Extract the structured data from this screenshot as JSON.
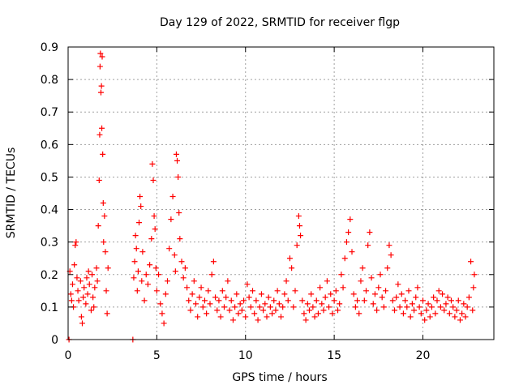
{
  "chart_data": {
    "type": "scatter",
    "title": "Day 129 of 2022, SRMTID for receiver flgp",
    "xlabel": "GPS time / hours",
    "ylabel": "SRMTID / TECUs",
    "xlim": [
      0,
      24
    ],
    "ylim": [
      0,
      0.9
    ],
    "x_ticks": [
      0,
      5,
      10,
      15,
      20
    ],
    "x_tick_labels": [
      "0",
      "5",
      "10",
      "15",
      "20"
    ],
    "y_ticks": [
      0,
      0.1,
      0.2,
      0.3,
      0.4,
      0.5,
      0.6,
      0.7,
      0.8,
      0.9
    ],
    "y_tick_labels": [
      "0",
      "0.1",
      "0.2",
      "0.3",
      "0.4",
      "0.5",
      "0.6",
      "0.7",
      "0.8",
      "0.9"
    ],
    "grid": true,
    "marker": "+",
    "color": "#ff0000",
    "series": [
      {
        "name": "SRMTID",
        "points": [
          [
            0.05,
            0.0
          ],
          [
            0.1,
            0.21
          ],
          [
            0.15,
            0.14
          ],
          [
            0.2,
            0.12
          ],
          [
            0.25,
            0.17
          ],
          [
            0.3,
            0.1
          ],
          [
            0.35,
            0.23
          ],
          [
            0.4,
            0.29
          ],
          [
            0.45,
            0.3
          ],
          [
            0.5,
            0.19
          ],
          [
            0.55,
            0.15
          ],
          [
            0.6,
            0.12
          ],
          [
            0.7,
            0.18
          ],
          [
            0.75,
            0.07
          ],
          [
            0.8,
            0.05
          ],
          [
            0.85,
            0.13
          ],
          [
            0.9,
            0.16
          ],
          [
            1.0,
            0.11
          ],
          [
            1.05,
            0.19
          ],
          [
            1.1,
            0.14
          ],
          [
            1.15,
            0.21
          ],
          [
            1.2,
            0.17
          ],
          [
            1.3,
            0.09
          ],
          [
            1.35,
            0.2
          ],
          [
            1.4,
            0.13
          ],
          [
            1.45,
            0.1
          ],
          [
            1.5,
            0.16
          ],
          [
            1.6,
            0.22
          ],
          [
            1.65,
            0.18
          ],
          [
            1.7,
            0.35
          ],
          [
            1.75,
            0.49
          ],
          [
            1.78,
            0.63
          ],
          [
            1.8,
            0.84
          ],
          [
            1.82,
            0.88
          ],
          [
            1.85,
            0.76
          ],
          [
            1.88,
            0.78
          ],
          [
            1.9,
            0.65
          ],
          [
            1.92,
            0.87
          ],
          [
            1.95,
            0.57
          ],
          [
            1.98,
            0.42
          ],
          [
            2.0,
            0.3
          ],
          [
            2.05,
            0.38
          ],
          [
            2.1,
            0.27
          ],
          [
            2.15,
            0.15
          ],
          [
            2.2,
            0.08
          ],
          [
            2.25,
            0.22
          ],
          [
            3.65,
            0.0
          ],
          [
            3.7,
            0.19
          ],
          [
            3.75,
            0.24
          ],
          [
            3.8,
            0.32
          ],
          [
            3.85,
            0.28
          ],
          [
            3.9,
            0.15
          ],
          [
            3.95,
            0.21
          ],
          [
            4.0,
            0.36
          ],
          [
            4.05,
            0.44
          ],
          [
            4.1,
            0.41
          ],
          [
            4.15,
            0.18
          ],
          [
            4.2,
            0.27
          ],
          [
            4.3,
            0.12
          ],
          [
            4.4,
            0.2
          ],
          [
            4.5,
            0.17
          ],
          [
            4.6,
            0.23
          ],
          [
            4.7,
            0.31
          ],
          [
            4.75,
            0.54
          ],
          [
            4.8,
            0.49
          ],
          [
            4.85,
            0.38
          ],
          [
            4.9,
            0.34
          ],
          [
            4.95,
            0.22
          ],
          [
            5.0,
            0.15
          ],
          [
            5.1,
            0.2
          ],
          [
            5.2,
            0.11
          ],
          [
            5.3,
            0.08
          ],
          [
            5.4,
            0.05
          ],
          [
            5.5,
            0.14
          ],
          [
            5.6,
            0.18
          ],
          [
            5.7,
            0.28
          ],
          [
            5.8,
            0.37
          ],
          [
            5.9,
            0.44
          ],
          [
            6.0,
            0.26
          ],
          [
            6.05,
            0.21
          ],
          [
            6.1,
            0.57
          ],
          [
            6.15,
            0.55
          ],
          [
            6.2,
            0.5
          ],
          [
            6.25,
            0.39
          ],
          [
            6.3,
            0.31
          ],
          [
            6.4,
            0.24
          ],
          [
            6.5,
            0.19
          ],
          [
            6.6,
            0.22
          ],
          [
            6.7,
            0.16
          ],
          [
            6.8,
            0.12
          ],
          [
            6.9,
            0.09
          ],
          [
            7.0,
            0.14
          ],
          [
            7.1,
            0.18
          ],
          [
            7.2,
            0.11
          ],
          [
            7.3,
            0.07
          ],
          [
            7.4,
            0.13
          ],
          [
            7.5,
            0.16
          ],
          [
            7.6,
            0.1
          ],
          [
            7.7,
            0.12
          ],
          [
            7.8,
            0.08
          ],
          [
            7.9,
            0.15
          ],
          [
            8.0,
            0.11
          ],
          [
            8.1,
            0.2
          ],
          [
            8.2,
            0.24
          ],
          [
            8.3,
            0.13
          ],
          [
            8.4,
            0.09
          ],
          [
            8.5,
            0.12
          ],
          [
            8.6,
            0.07
          ],
          [
            8.7,
            0.15
          ],
          [
            8.8,
            0.1
          ],
          [
            8.9,
            0.13
          ],
          [
            9.0,
            0.18
          ],
          [
            9.1,
            0.09
          ],
          [
            9.2,
            0.12
          ],
          [
            9.3,
            0.06
          ],
          [
            9.4,
            0.1
          ],
          [
            9.5,
            0.14
          ],
          [
            9.6,
            0.08
          ],
          [
            9.7,
            0.11
          ],
          [
            9.8,
            0.09
          ],
          [
            9.9,
            0.12
          ],
          [
            10.0,
            0.07
          ],
          [
            10.1,
            0.17
          ],
          [
            10.2,
            0.13
          ],
          [
            10.3,
            0.1
          ],
          [
            10.4,
            0.15
          ],
          [
            10.5,
            0.08
          ],
          [
            10.6,
            0.12
          ],
          [
            10.7,
            0.06
          ],
          [
            10.8,
            0.1
          ],
          [
            10.9,
            0.14
          ],
          [
            11.0,
            0.09
          ],
          [
            11.1,
            0.11
          ],
          [
            11.2,
            0.07
          ],
          [
            11.3,
            0.13
          ],
          [
            11.4,
            0.1
          ],
          [
            11.5,
            0.08
          ],
          [
            11.6,
            0.12
          ],
          [
            11.7,
            0.09
          ],
          [
            11.8,
            0.15
          ],
          [
            11.9,
            0.11
          ],
          [
            12.0,
            0.07
          ],
          [
            12.1,
            0.1
          ],
          [
            12.2,
            0.14
          ],
          [
            12.3,
            0.18
          ],
          [
            12.4,
            0.12
          ],
          [
            12.5,
            0.25
          ],
          [
            12.6,
            0.22
          ],
          [
            12.7,
            0.1
          ],
          [
            12.8,
            0.15
          ],
          [
            12.9,
            0.29
          ],
          [
            13.0,
            0.38
          ],
          [
            13.05,
            0.35
          ],
          [
            13.1,
            0.32
          ],
          [
            13.2,
            0.12
          ],
          [
            13.3,
            0.08
          ],
          [
            13.4,
            0.06
          ],
          [
            13.5,
            0.11
          ],
          [
            13.6,
            0.09
          ],
          [
            13.7,
            0.14
          ],
          [
            13.8,
            0.1
          ],
          [
            13.9,
            0.07
          ],
          [
            14.0,
            0.12
          ],
          [
            14.1,
            0.08
          ],
          [
            14.2,
            0.16
          ],
          [
            14.3,
            0.11
          ],
          [
            14.4,
            0.09
          ],
          [
            14.5,
            0.13
          ],
          [
            14.6,
            0.18
          ],
          [
            14.7,
            0.1
          ],
          [
            14.8,
            0.14
          ],
          [
            14.9,
            0.08
          ],
          [
            15.0,
            0.12
          ],
          [
            15.1,
            0.15
          ],
          [
            15.2,
            0.09
          ],
          [
            15.3,
            0.11
          ],
          [
            15.4,
            0.2
          ],
          [
            15.5,
            0.16
          ],
          [
            15.6,
            0.25
          ],
          [
            15.7,
            0.3
          ],
          [
            15.8,
            0.33
          ],
          [
            15.9,
            0.37
          ],
          [
            16.0,
            0.27
          ],
          [
            16.1,
            0.14
          ],
          [
            16.2,
            0.1
          ],
          [
            16.3,
            0.12
          ],
          [
            16.4,
            0.08
          ],
          [
            16.5,
            0.18
          ],
          [
            16.6,
            0.22
          ],
          [
            16.7,
            0.12
          ],
          [
            16.8,
            0.15
          ],
          [
            16.9,
            0.29
          ],
          [
            17.0,
            0.33
          ],
          [
            17.1,
            0.19
          ],
          [
            17.2,
            0.11
          ],
          [
            17.3,
            0.14
          ],
          [
            17.4,
            0.09
          ],
          [
            17.5,
            0.16
          ],
          [
            17.6,
            0.2
          ],
          [
            17.7,
            0.13
          ],
          [
            17.8,
            0.1
          ],
          [
            17.9,
            0.15
          ],
          [
            18.0,
            0.22
          ],
          [
            18.1,
            0.29
          ],
          [
            18.2,
            0.26
          ],
          [
            18.3,
            0.12
          ],
          [
            18.4,
            0.09
          ],
          [
            18.5,
            0.13
          ],
          [
            18.6,
            0.17
          ],
          [
            18.7,
            0.1
          ],
          [
            18.8,
            0.14
          ],
          [
            18.9,
            0.08
          ],
          [
            19.0,
            0.12
          ],
          [
            19.1,
            0.1
          ],
          [
            19.2,
            0.15
          ],
          [
            19.3,
            0.07
          ],
          [
            19.4,
            0.11
          ],
          [
            19.5,
            0.09
          ],
          [
            19.6,
            0.13
          ],
          [
            19.7,
            0.16
          ],
          [
            19.8,
            0.1
          ],
          [
            19.9,
            0.08
          ],
          [
            20.0,
            0.12
          ],
          [
            20.1,
            0.06
          ],
          [
            20.2,
            0.09
          ],
          [
            20.3,
            0.11
          ],
          [
            20.4,
            0.07
          ],
          [
            20.5,
            0.1
          ],
          [
            20.6,
            0.13
          ],
          [
            20.7,
            0.08
          ],
          [
            20.8,
            0.12
          ],
          [
            20.9,
            0.15
          ],
          [
            21.0,
            0.1
          ],
          [
            21.1,
            0.14
          ],
          [
            21.2,
            0.09
          ],
          [
            21.3,
            0.11
          ],
          [
            21.4,
            0.13
          ],
          [
            21.5,
            0.08
          ],
          [
            21.6,
            0.12
          ],
          [
            21.7,
            0.1
          ],
          [
            21.8,
            0.07
          ],
          [
            21.9,
            0.09
          ],
          [
            22.0,
            0.12
          ],
          [
            22.1,
            0.06
          ],
          [
            22.2,
            0.08
          ],
          [
            22.3,
            0.11
          ],
          [
            22.4,
            0.07
          ],
          [
            22.5,
            0.1
          ],
          [
            22.6,
            0.13
          ],
          [
            22.7,
            0.24
          ],
          [
            22.8,
            0.09
          ],
          [
            22.85,
            0.16
          ],
          [
            22.9,
            0.2
          ]
        ]
      }
    ]
  }
}
